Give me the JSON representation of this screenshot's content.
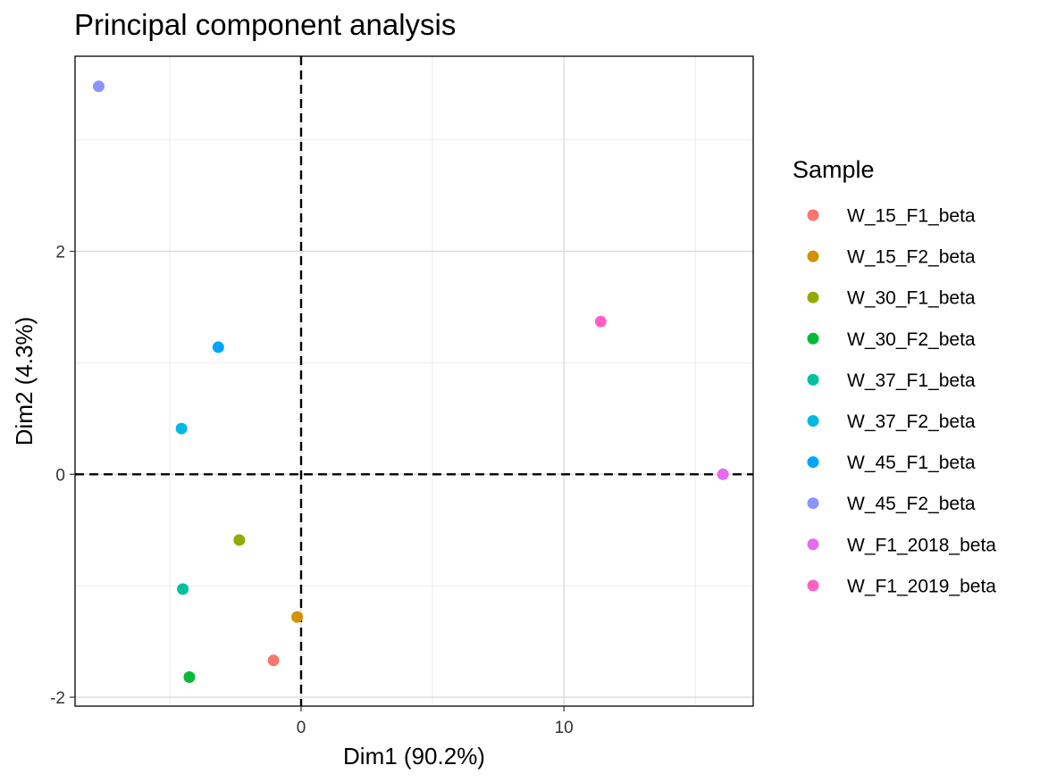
{
  "chart_data": {
    "type": "scatter",
    "title": "Principal component analysis",
    "xlabel": "Dim1 (90.2%)",
    "ylabel": "Dim2 (4.3%)",
    "xlim": [
      -8.6,
      17.2
    ],
    "ylim": [
      -2.08,
      3.75
    ],
    "x_ticks": [
      0,
      10
    ],
    "y_ticks": [
      -2,
      0,
      2
    ],
    "x_minor": [
      -5,
      5,
      15
    ],
    "y_minor": [
      -1,
      1,
      3
    ],
    "grid": true,
    "reference_lines": {
      "x": 0,
      "y": 0,
      "style": "dashed"
    },
    "legend": {
      "title": "Sample",
      "position": "right"
    },
    "series": [
      {
        "name": "W_15_F1_beta",
        "color": "#F8766D",
        "x": -1.05,
        "y": -1.67
      },
      {
        "name": "W_15_F2_beta",
        "color": "#D39200",
        "x": -0.15,
        "y": -1.28
      },
      {
        "name": "W_30_F1_beta",
        "color": "#93AA00",
        "x": -2.35,
        "y": -0.59
      },
      {
        "name": "W_30_F2_beta",
        "color": "#00BA38",
        "x": -4.25,
        "y": -1.82
      },
      {
        "name": "W_37_F1_beta",
        "color": "#00C19F",
        "x": -4.5,
        "y": -1.03
      },
      {
        "name": "W_37_F2_beta",
        "color": "#00B9E3",
        "x": -4.55,
        "y": 0.41
      },
      {
        "name": "W_45_F1_beta",
        "color": "#00A5FF",
        "x": -3.15,
        "y": 1.14
      },
      {
        "name": "W_45_F2_beta",
        "color": "#8B93FF",
        "x": -7.7,
        "y": 3.48
      },
      {
        "name": "W_F1_2018_beta",
        "color": "#E76BF3",
        "x": 16.05,
        "y": 0.0
      },
      {
        "name": "W_F1_2019_beta",
        "color": "#FF61C3",
        "x": 11.4,
        "y": 1.37
      }
    ]
  }
}
